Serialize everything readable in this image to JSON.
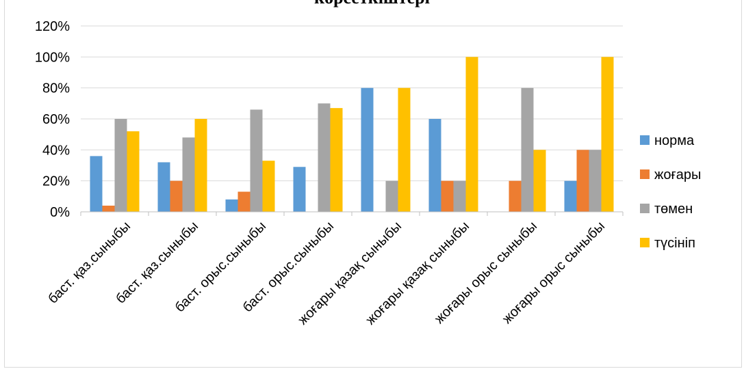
{
  "chart_data": {
    "type": "bar",
    "title": "көрсеткіштері",
    "categories": [
      "баст. қаз.сыныбы",
      "баст. қаз.сыныбы",
      "баст. орыс.сыныбы",
      "баст. орыс.сыныбы",
      "жоғары қазақ сыныбы",
      "жоғары қазақ сыныбы",
      "жоғары орыс сыныбы",
      "жоғары орыс сыныбы"
    ],
    "series": [
      {
        "name": "норма",
        "color": "#5B9BD5",
        "values": [
          36,
          32,
          8,
          29,
          80,
          60,
          0,
          20
        ]
      },
      {
        "name": "жоғары",
        "color": "#ED7D31",
        "values": [
          4,
          20,
          13,
          0,
          0,
          20,
          20,
          40
        ]
      },
      {
        "name": "төмен",
        "color": "#A5A5A5",
        "values": [
          60,
          48,
          66,
          70,
          20,
          20,
          80,
          40
        ]
      },
      {
        "name": "түсініп",
        "color": "#FFC000",
        "values": [
          52,
          60,
          33,
          67,
          80,
          100,
          40,
          100
        ]
      }
    ],
    "yticks": [
      "0%",
      "20%",
      "40%",
      "60%",
      "80%",
      "100%",
      "120%"
    ],
    "ylim": [
      0,
      120
    ],
    "grid": true,
    "legend_position": "right",
    "xlabel": "",
    "ylabel": ""
  }
}
